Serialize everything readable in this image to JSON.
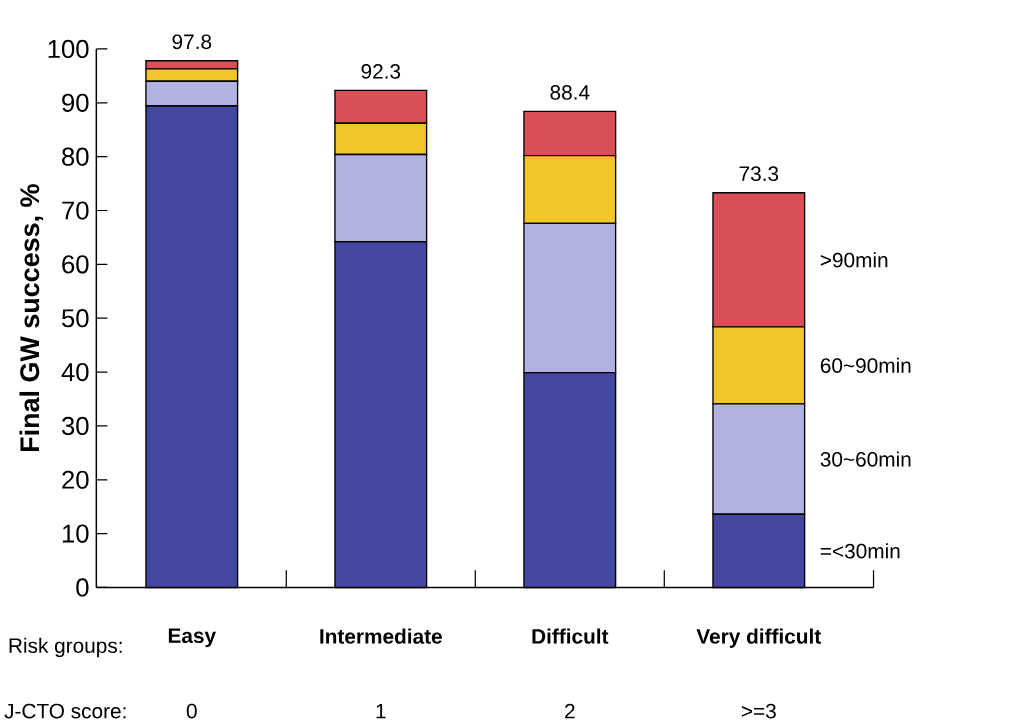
{
  "chart_data": {
    "type": "bar",
    "stacked": true,
    "categories": [
      "Easy",
      "Intermediate",
      "Difficult",
      "Very difficult"
    ],
    "series": [
      {
        "name": "=<30min",
        "color": "#4347a0",
        "values": [
          89.4,
          64.2,
          39.9,
          13.6
        ]
      },
      {
        "name": "30~60min",
        "color": "#b1b1e2",
        "values": [
          4.6,
          16.2,
          27.7,
          20.5
        ]
      },
      {
        "name": "60~90min",
        "color": "#f1c62b",
        "values": [
          2.3,
          5.8,
          12.6,
          14.3
        ]
      },
      {
        "name": ">90min",
        "color": "#da4f56",
        "values": [
          1.5,
          6.1,
          8.2,
          24.9
        ]
      }
    ],
    "totals": [
      "97.8",
      "92.3",
      "88.4",
      "73.3"
    ],
    "ylabel": "Final GW success, %",
    "ylim": [
      0,
      100
    ],
    "yticks": [
      0,
      10,
      20,
      30,
      40,
      50,
      60,
      70,
      80,
      90,
      100
    ],
    "annotations": [
      "Risk groups:",
      "J-CTO score:",
      "0",
      "1",
      "2",
      ">=3"
    ]
  }
}
